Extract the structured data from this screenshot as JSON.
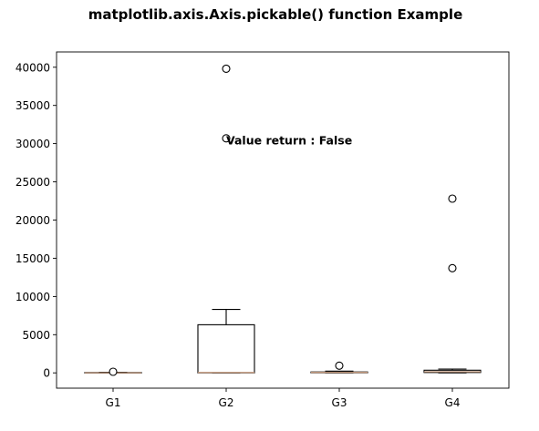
{
  "chart_data": {
    "type": "boxplot",
    "title": "matplotlib.axis.Axis.pickable() function Example",
    "xlabel": "",
    "ylabel": "",
    "categories": [
      "G1",
      "G2",
      "G3",
      "G4"
    ],
    "ylim": [
      -2000,
      42000
    ],
    "yticks": [
      0,
      5000,
      10000,
      15000,
      20000,
      25000,
      30000,
      35000,
      40000
    ],
    "ytick_labels": [
      "0",
      "5000",
      "10000",
      "15000",
      "20000",
      "25000",
      "30000",
      "35000",
      "40000"
    ],
    "boxes": [
      {
        "label": "G1",
        "whislo": 0,
        "q1": 0,
        "med": 20,
        "q3": 50,
        "whishi": 80,
        "fliers": [
          150
        ]
      },
      {
        "label": "G2",
        "whislo": 0,
        "q1": 0,
        "med": 50,
        "q3": 6300,
        "whishi": 8300,
        "fliers": [
          30700,
          39800
        ]
      },
      {
        "label": "G3",
        "whislo": 0,
        "q1": 20,
        "med": 60,
        "q3": 120,
        "whishi": 230,
        "fliers": [
          950
        ]
      },
      {
        "label": "G4",
        "whislo": 0,
        "q1": 50,
        "med": 150,
        "q3": 350,
        "whishi": 500,
        "fliers": [
          13700,
          22800
        ]
      }
    ],
    "annotation": {
      "text": "Value return : False",
      "x": 2,
      "y": 30500
    },
    "grid": false,
    "colors": {
      "box": "#000000",
      "median": "#c0967a",
      "flier_face": "#ffffff",
      "flier_edge": "#000000"
    }
  }
}
